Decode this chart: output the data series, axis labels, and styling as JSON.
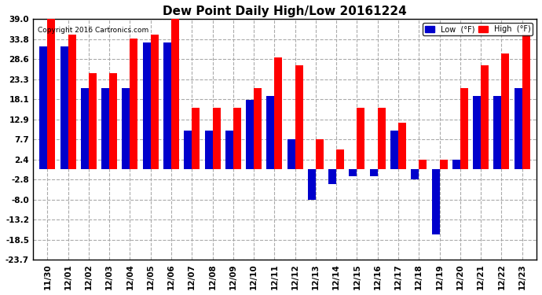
{
  "title": "Dew Point Daily High/Low 20161224",
  "copyright": "Copyright 2016 Cartronics.com",
  "dates": [
    "11/30",
    "12/01",
    "12/02",
    "12/03",
    "12/04",
    "12/05",
    "12/06",
    "12/07",
    "12/08",
    "12/09",
    "12/10",
    "12/11",
    "12/12",
    "12/13",
    "12/14",
    "12/15",
    "12/16",
    "12/17",
    "12/18",
    "12/19",
    "12/20",
    "12/21",
    "12/22",
    "12/23"
  ],
  "high": [
    39.0,
    35.0,
    25.0,
    25.0,
    34.0,
    35.0,
    39.0,
    16.0,
    16.0,
    16.0,
    21.0,
    29.0,
    27.0,
    7.7,
    5.0,
    16.0,
    16.0,
    12.0,
    2.4,
    2.4,
    21.0,
    27.0,
    30.0,
    35.0
  ],
  "low": [
    32.0,
    32.0,
    21.0,
    21.0,
    21.0,
    33.0,
    33.0,
    10.0,
    10.0,
    10.0,
    18.0,
    19.0,
    7.7,
    -8.0,
    -4.0,
    -2.0,
    -2.0,
    10.0,
    -2.8,
    -17.0,
    2.4,
    19.0,
    19.0,
    21.0
  ],
  "ylim": [
    -23.7,
    39.0
  ],
  "yticks": [
    -23.7,
    -18.5,
    -13.2,
    -8.0,
    -2.8,
    2.4,
    7.7,
    12.9,
    18.1,
    23.3,
    28.6,
    33.8,
    39.0
  ],
  "bar_width": 0.38,
  "high_color": "#FF0000",
  "low_color": "#0000CC",
  "bg_color": "#FFFFFF",
  "plot_bg_color": "#FFFFFF",
  "grid_color": "#AAAAAA",
  "title_fontsize": 11,
  "legend_high_label": "High  (°F)",
  "legend_low_label": "Low  (°F)"
}
